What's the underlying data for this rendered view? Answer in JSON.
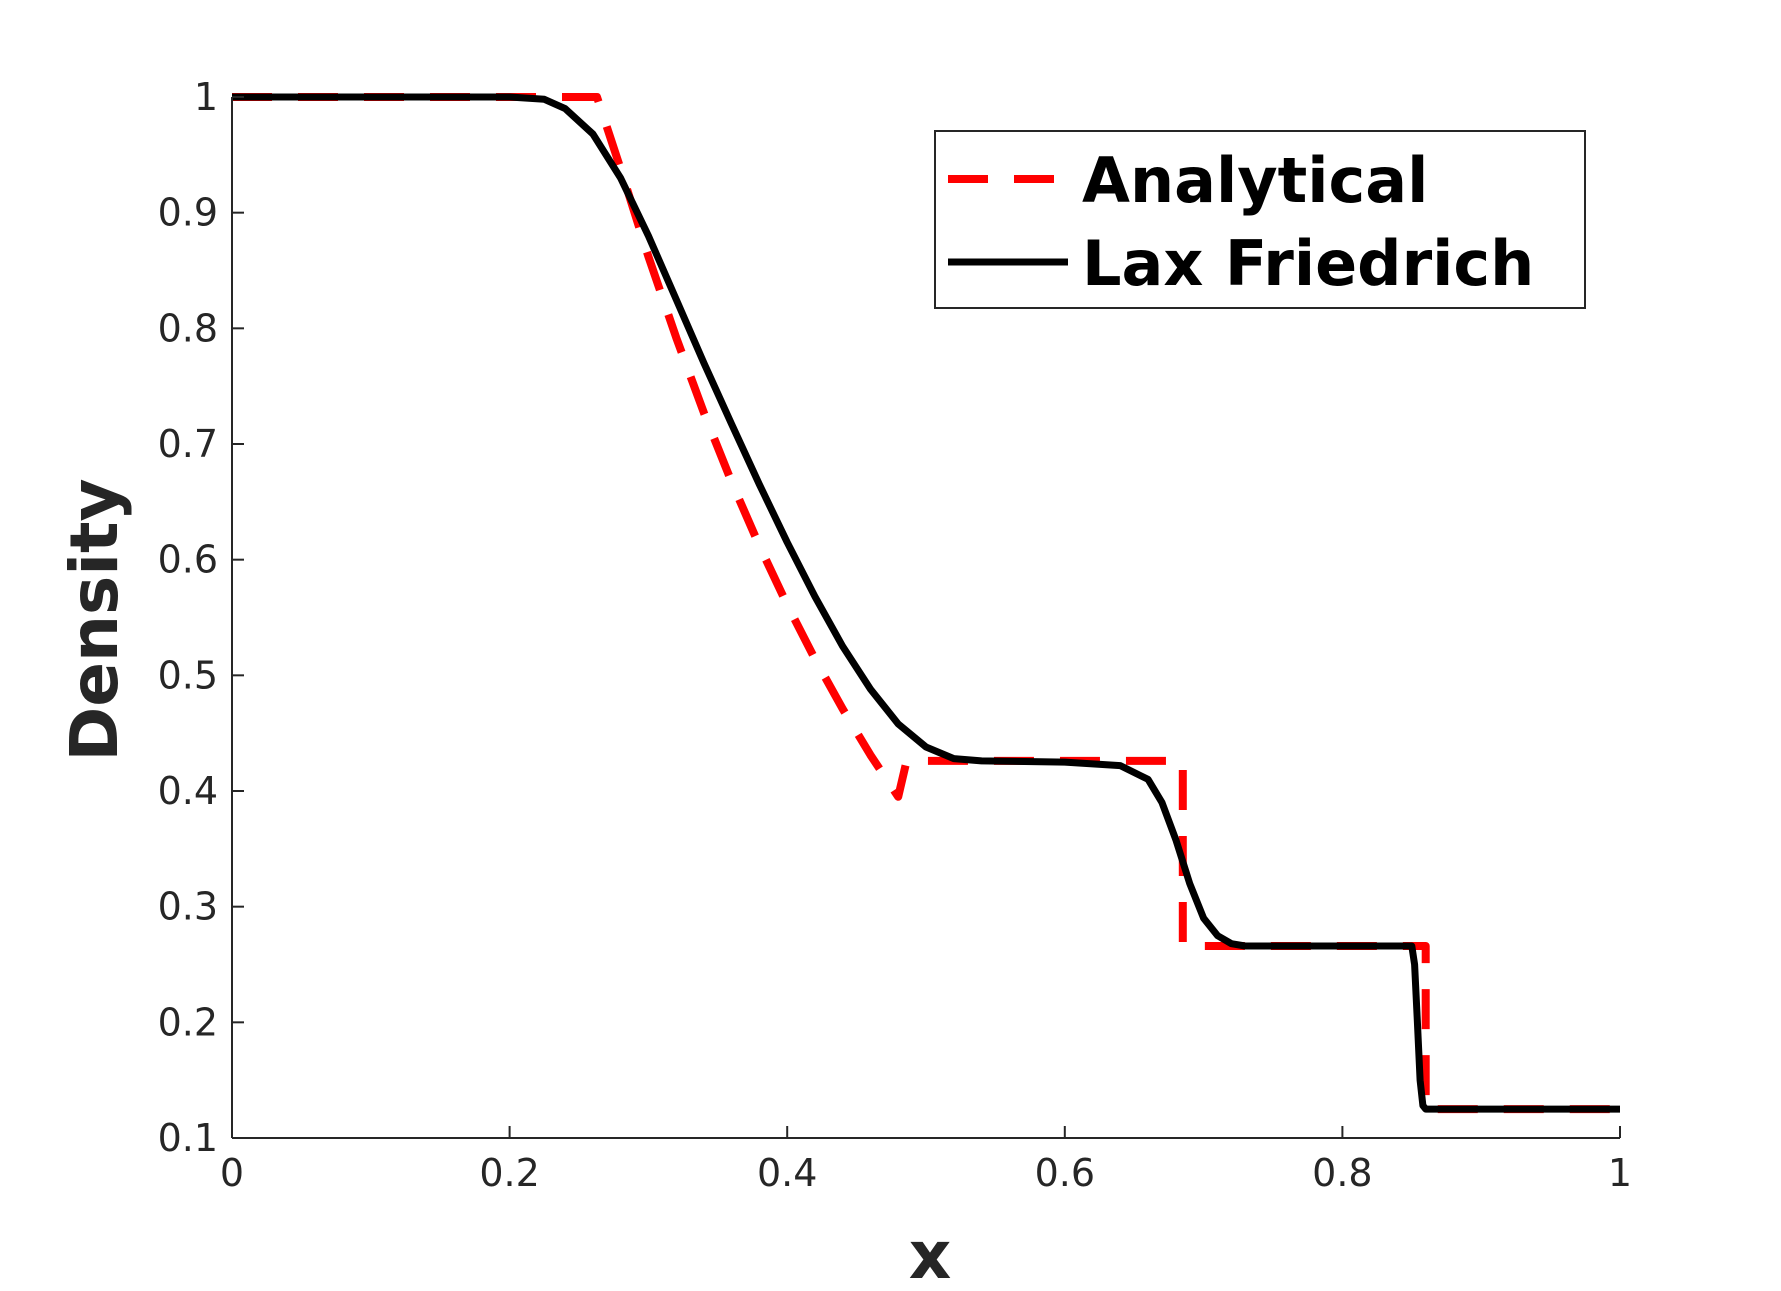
{
  "chart_data": {
    "type": "line",
    "xlabel": "x",
    "ylabel": "Density",
    "xlim": [
      0,
      1
    ],
    "ylim": [
      0.1,
      1
    ],
    "xticks": [
      0,
      0.2,
      0.4,
      0.6,
      0.8,
      1
    ],
    "xtick_labels": [
      "0",
      "0.2",
      "0.4",
      "0.6",
      "0.8",
      "1"
    ],
    "yticks": [
      0.1,
      0.2,
      0.3,
      0.4,
      0.5,
      0.6,
      0.7,
      0.8,
      0.9,
      1
    ],
    "ytick_labels": [
      "0.1",
      "0.2",
      "0.3",
      "0.4",
      "0.5",
      "0.6",
      "0.7",
      "0.8",
      "0.9",
      "1"
    ],
    "grid": false,
    "legend_position": "top-right",
    "series": [
      {
        "name": "Analytical",
        "color": "#ff0000",
        "style": "dashed",
        "x": [
          0,
          0.263,
          0.28,
          0.3,
          0.32,
          0.34,
          0.36,
          0.38,
          0.4,
          0.42,
          0.44,
          0.46,
          0.48,
          0.486,
          0.6,
          0.685,
          0.685,
          0.86,
          0.86,
          1.0
        ],
        "y": [
          1.0,
          1.0,
          0.938,
          0.862,
          0.792,
          0.727,
          0.667,
          0.612,
          0.561,
          0.514,
          0.471,
          0.431,
          0.395,
          0.426,
          0.426,
          0.426,
          0.266,
          0.266,
          0.125,
          0.125
        ]
      },
      {
        "name": "Lax Friedrich",
        "color": "#000000",
        "style": "solid",
        "x": [
          0,
          0.2,
          0.225,
          0.24,
          0.26,
          0.28,
          0.3,
          0.32,
          0.34,
          0.36,
          0.38,
          0.4,
          0.42,
          0.44,
          0.46,
          0.48,
          0.5,
          0.52,
          0.54,
          0.6,
          0.64,
          0.66,
          0.67,
          0.68,
          0.69,
          0.7,
          0.71,
          0.72,
          0.73,
          0.75,
          0.85,
          0.852,
          0.854,
          0.856,
          0.858,
          0.86,
          1.0
        ],
        "y": [
          1.0,
          1.0,
          0.998,
          0.99,
          0.968,
          0.93,
          0.88,
          0.825,
          0.77,
          0.717,
          0.665,
          0.615,
          0.568,
          0.525,
          0.488,
          0.458,
          0.438,
          0.428,
          0.426,
          0.425,
          0.422,
          0.41,
          0.39,
          0.358,
          0.32,
          0.29,
          0.275,
          0.268,
          0.266,
          0.266,
          0.266,
          0.25,
          0.2,
          0.15,
          0.128,
          0.125,
          0.125
        ]
      }
    ]
  }
}
